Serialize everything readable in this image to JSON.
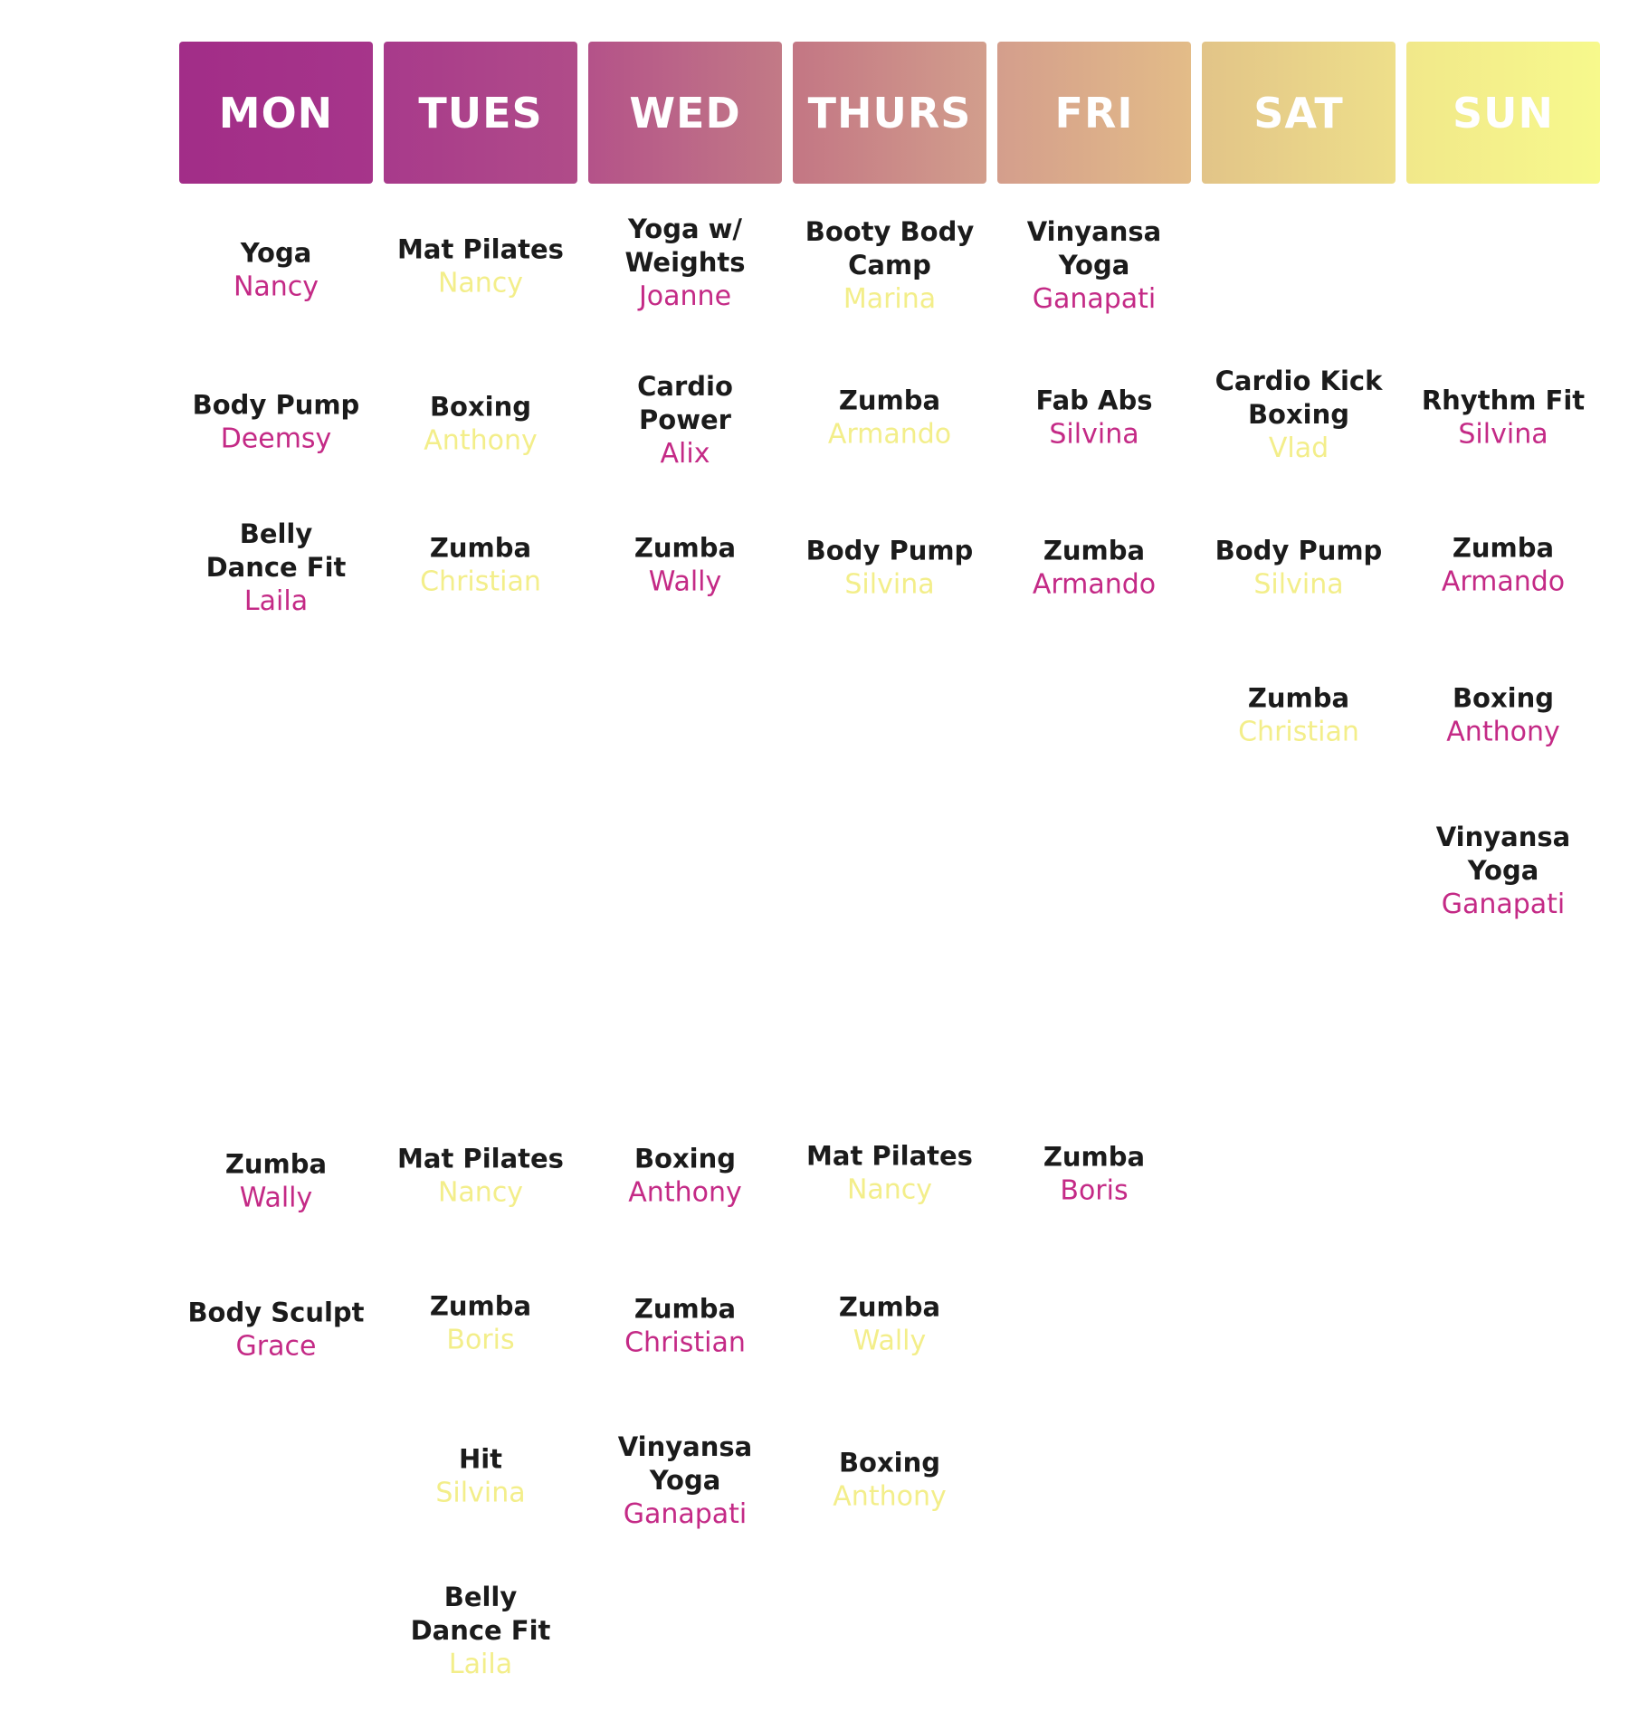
{
  "colors": {
    "instructor_magenta": "#c42a86",
    "instructor_yellow": "#f3ee8a",
    "gradient_start": "#a22d88",
    "gradient_end": "#f7f98c"
  },
  "days": [
    {
      "label": "MON"
    },
    {
      "label": "TUES"
    },
    {
      "label": "WED"
    },
    {
      "label": "THURS"
    },
    {
      "label": "FRI"
    },
    {
      "label": "SAT"
    },
    {
      "label": "SUN"
    }
  ],
  "classes": {
    "mon": [
      {
        "name": "Yoga",
        "instructor": "Nancy",
        "color": "magenta"
      },
      {
        "name": "Body Pump",
        "instructor": "Deemsy",
        "color": "magenta"
      },
      {
        "name": "Belly Dance Fit",
        "instructor": "Laila",
        "color": "magenta"
      },
      {
        "name": "Zumba",
        "instructor": "Wally",
        "color": "magenta"
      },
      {
        "name": "Body Sculpt",
        "instructor": "Grace",
        "color": "magenta"
      }
    ],
    "tues": [
      {
        "name": "Mat Pilates",
        "instructor": "Nancy",
        "color": "yellow"
      },
      {
        "name": "Boxing",
        "instructor": "Anthony",
        "color": "yellow"
      },
      {
        "name": "Zumba",
        "instructor": "Christian",
        "color": "yellow"
      },
      {
        "name": "Mat Pilates",
        "instructor": "Nancy",
        "color": "yellow"
      },
      {
        "name": "Zumba",
        "instructor": "Boris",
        "color": "yellow"
      },
      {
        "name": "Hit",
        "instructor": "Silvina",
        "color": "yellow"
      },
      {
        "name": "Belly Dance Fit",
        "instructor": "Laila",
        "color": "yellow"
      }
    ],
    "wed": [
      {
        "name": "Yoga w/ Weights",
        "instructor": "Joanne",
        "color": "magenta"
      },
      {
        "name": "Cardio Power",
        "instructor": "Alix",
        "color": "magenta"
      },
      {
        "name": "Zumba",
        "instructor": "Wally",
        "color": "magenta"
      },
      {
        "name": "Boxing",
        "instructor": "Anthony",
        "color": "magenta"
      },
      {
        "name": "Zumba",
        "instructor": "Christian",
        "color": "magenta"
      },
      {
        "name": "Vinyansa Yoga",
        "instructor": "Ganapati",
        "color": "magenta"
      }
    ],
    "thurs": [
      {
        "name": "Booty Body Camp",
        "instructor": "Marina",
        "color": "yellow"
      },
      {
        "name": "Zumba",
        "instructor": "Armando",
        "color": "yellow"
      },
      {
        "name": "Body Pump",
        "instructor": "Silvina",
        "color": "yellow"
      },
      {
        "name": "Mat Pilates",
        "instructor": "Nancy",
        "color": "yellow"
      },
      {
        "name": "Zumba",
        "instructor": "Wally",
        "color": "yellow"
      },
      {
        "name": "Boxing",
        "instructor": "Anthony",
        "color": "yellow"
      }
    ],
    "fri": [
      {
        "name": "Vinyansa Yoga",
        "instructor": "Ganapati",
        "color": "magenta"
      },
      {
        "name": "Fab Abs",
        "instructor": "Silvina",
        "color": "magenta"
      },
      {
        "name": "Zumba",
        "instructor": "Armando",
        "color": "magenta"
      },
      {
        "name": "Zumba",
        "instructor": "Boris",
        "color": "magenta"
      }
    ],
    "sat": [
      {
        "name": "Cardio Kick Boxing",
        "instructor": "Vlad",
        "color": "yellow"
      },
      {
        "name": "Body Pump",
        "instructor": "Silvina",
        "color": "yellow"
      },
      {
        "name": "Zumba",
        "instructor": "Christian",
        "color": "yellow"
      }
    ],
    "sun": [
      {
        "name": "Rhythm Fit",
        "instructor": "Silvina",
        "color": "magenta"
      },
      {
        "name": "Zumba",
        "instructor": "Armando",
        "color": "magenta"
      },
      {
        "name": "Boxing",
        "instructor": "Anthony",
        "color": "magenta"
      },
      {
        "name": "Vinyansa Yoga",
        "instructor": "Ganapati",
        "color": "magenta"
      }
    ]
  }
}
